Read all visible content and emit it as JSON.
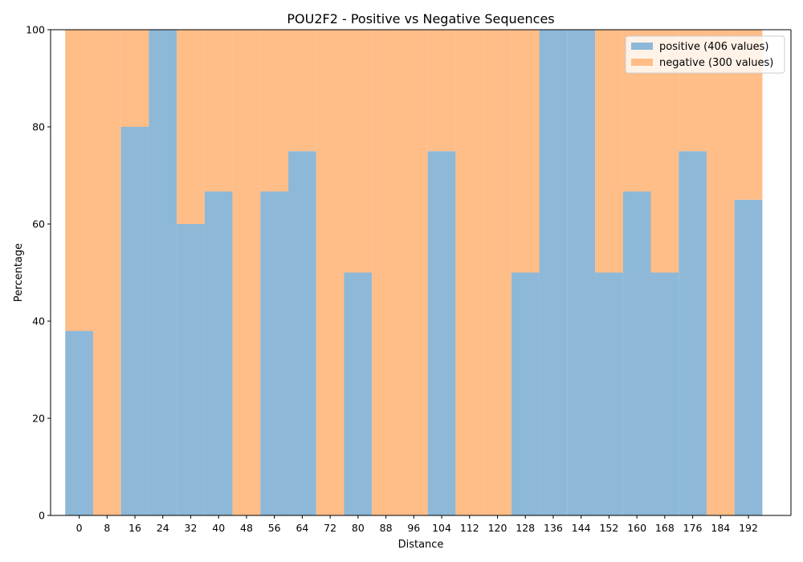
{
  "chart_data": {
    "type": "bar",
    "title": "POU2F2 - Positive vs Negative Sequences",
    "xlabel": "Distance",
    "ylabel": "Percentage",
    "ylim": [
      0,
      100
    ],
    "xlim": [
      -8.2,
      204.2
    ],
    "bar_width": 8,
    "yticks": [
      0,
      20,
      40,
      60,
      80,
      100
    ],
    "x": [
      0,
      8,
      16,
      24,
      32,
      40,
      48,
      56,
      64,
      72,
      80,
      88,
      96,
      104,
      112,
      120,
      128,
      136,
      144,
      152,
      160,
      168,
      176,
      184,
      192
    ],
    "stacking": "stacked to 100%",
    "grid": false,
    "legend_position": "upper right",
    "series": [
      {
        "name": "positive (406 values)",
        "color": "#8db8d7",
        "values": [
          38,
          0,
          80,
          100,
          60,
          66.7,
          0,
          66.7,
          75,
          0,
          50,
          0,
          0,
          75,
          0,
          0,
          50,
          100,
          100,
          50,
          66.7,
          50,
          75,
          0,
          65
        ]
      },
      {
        "name": "negative (300 values)",
        "color": "#ffbd87",
        "values": [
          62,
          100,
          20,
          0,
          40,
          33.3,
          100,
          33.3,
          25,
          100,
          50,
          100,
          100,
          25,
          100,
          100,
          50,
          0,
          0,
          50,
          33.3,
          50,
          25,
          100,
          35
        ]
      }
    ]
  }
}
